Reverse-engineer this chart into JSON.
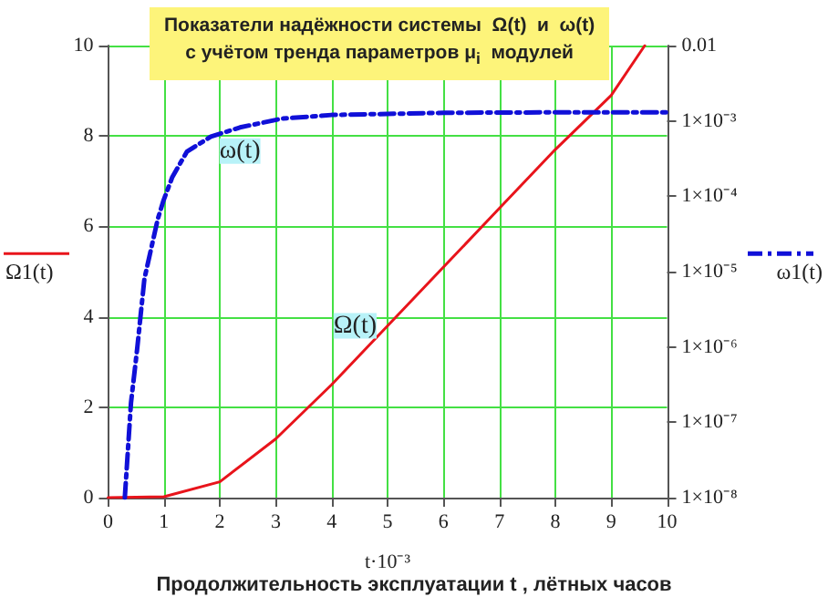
{
  "chart_data": {
    "type": "line",
    "title": "Показатели надёжности системы  Ω(t)  и  ω(t)",
    "subtitle": "с учётом тренда параметров μ$_{i}$  модулей",
    "xlabel": "t·10⁻³",
    "ylabel": "Ω1(t)",
    "y2label": "ω1(t)",
    "annotations": [
      "Продолжительность эксплуатации t , лётных часов"
    ],
    "series": [
      {
        "name": "Ω(t)",
        "color": "#e8141b",
        "line_style": "solid",
        "x": [
          0,
          1,
          2,
          3,
          4,
          5,
          6,
          7,
          8,
          9,
          9.6
        ],
        "values": [
          0,
          0.02,
          0.35,
          1.3,
          2.5,
          3.8,
          5.1,
          6.4,
          7.7,
          8.9,
          10
        ]
      },
      {
        "name": "ω(t)",
        "color": "#1010d8",
        "line_style": "dashed",
        "axis": "y2",
        "x": [
          0.3,
          0.41,
          0.52,
          0.65,
          0.89,
          0.99,
          1.15,
          1.41,
          1.84,
          2.36,
          3.1,
          4,
          6,
          8,
          10
        ],
        "values": [
          1e-08,
          1.8e-07,
          9.3e-07,
          8e-06,
          5e-05,
          8.7e-05,
          0.00018,
          0.00039,
          0.00062,
          0.00082,
          0.00107,
          0.0012,
          0.00128,
          0.0013,
          0.0013
        ]
      }
    ],
    "xlim": [
      0,
      10
    ],
    "xticks": [
      0,
      1,
      2,
      3,
      4,
      5,
      6,
      7,
      8,
      9,
      10
    ],
    "ylim": [
      0,
      10
    ],
    "yticks": [
      0,
      2,
      4,
      6,
      8,
      10
    ],
    "y2lim": [
      1e-08,
      0.01
    ],
    "y2ticks": [
      {
        "value": 1e-08,
        "label": "1×10⁻⁸"
      },
      {
        "value": 1e-07,
        "label": "1×10⁻⁷"
      },
      {
        "value": 1e-06,
        "label": "1×10⁻⁶"
      },
      {
        "value": 1e-05,
        "label": "1×10⁻⁵"
      },
      {
        "value": 0.0001,
        "label": "1×10⁻⁴"
      },
      {
        "value": 0.001,
        "label": "1×10⁻³"
      },
      {
        "value": 0.01,
        "label": "0.01"
      }
    ],
    "log": "y2",
    "grid": true,
    "marker": "none"
  }
}
